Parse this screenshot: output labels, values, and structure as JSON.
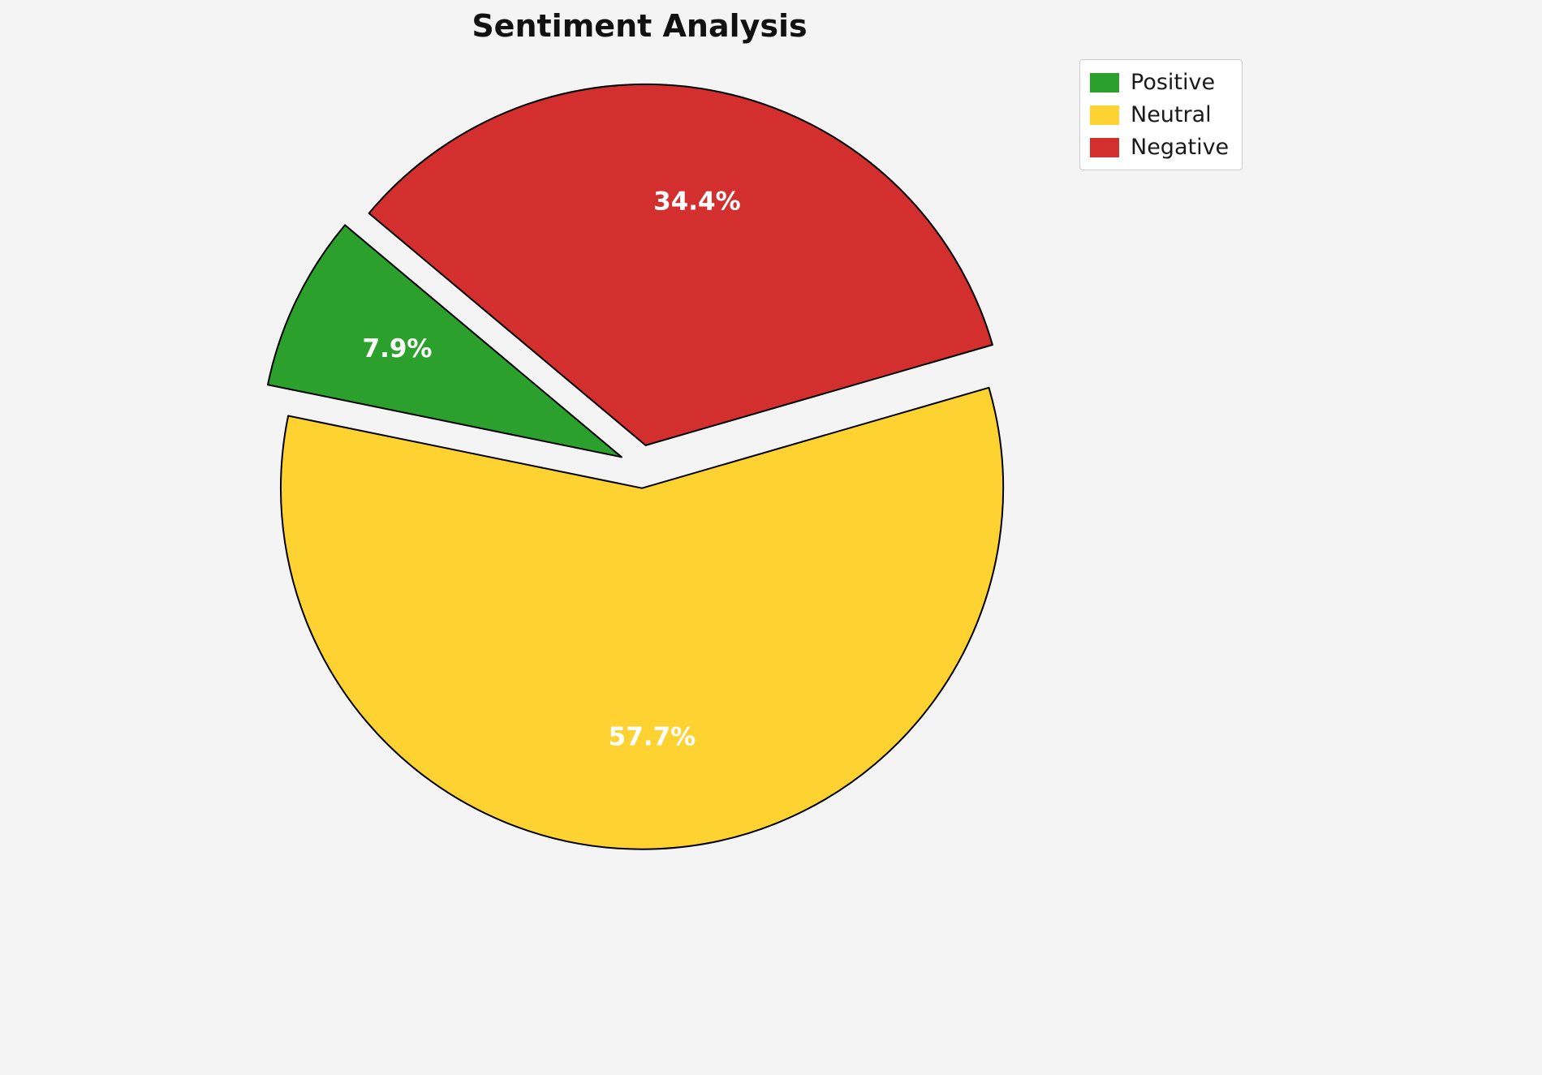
{
  "title": "Sentiment Analysis",
  "figure": {
    "background_color": "#f4f4f5"
  },
  "chart_data": {
    "type": "pie",
    "title": "Sentiment Analysis",
    "slices": [
      {
        "label": "Positive",
        "value": 7.9,
        "pct_label": "7.9%",
        "color": "#2ca02c"
      },
      {
        "label": "Neutral",
        "value": 57.7,
        "pct_label": "57.7%",
        "color": "#fed230"
      },
      {
        "label": "Negative",
        "value": 34.4,
        "pct_label": "34.4%",
        "color": "#d32f2f"
      }
    ],
    "start_angle": 140,
    "direction": "counterclockwise",
    "explode": 0.06,
    "edge_color": "#000000",
    "edge_width": 2,
    "pct_distance": 0.69,
    "pct_label_color": "#ffffff",
    "legend": {
      "position": "upper right",
      "labels": [
        "Positive",
        "Neutral",
        "Negative"
      ]
    }
  }
}
